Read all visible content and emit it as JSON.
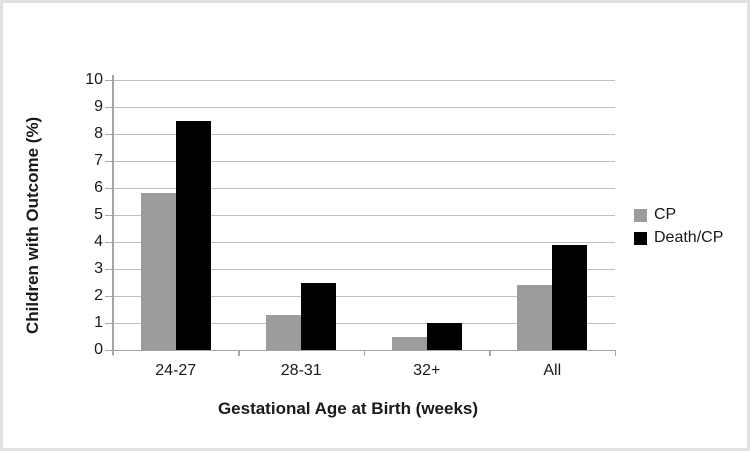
{
  "chart_data": {
    "type": "bar",
    "categories": [
      "24-27",
      "28-31",
      "32+",
      "All"
    ],
    "series": [
      {
        "name": "CP",
        "color": "#9c9c9c",
        "values": [
          5.8,
          1.3,
          0.5,
          2.4
        ]
      },
      {
        "name": "Death/CP",
        "color": "#000000",
        "values": [
          8.5,
          2.5,
          1.0,
          3.9
        ]
      }
    ],
    "title": "",
    "xlabel": "Gestational Age at Birth (weeks)",
    "ylabel": "Children with Outcome (%)",
    "ylim": [
      0,
      10
    ],
    "ytick_step": 1,
    "grid": true,
    "legend_position": "right"
  },
  "colors": {
    "gridline": "#bfbfbf",
    "axis": "#a6a6a6",
    "text": "#1a1a1a",
    "frame_border": "#e1e1e1",
    "background": "#ffffff"
  }
}
